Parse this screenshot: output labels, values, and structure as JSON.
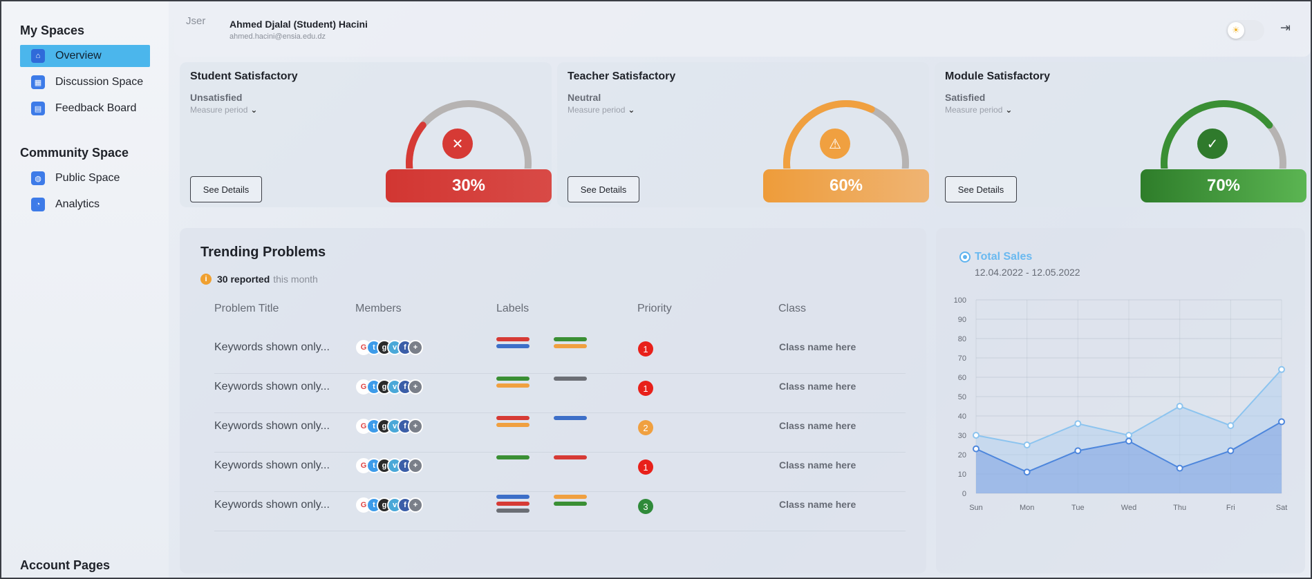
{
  "sidebar": {
    "my_spaces_title": "My Spaces",
    "my_spaces": [
      {
        "label": "Overview",
        "icon": "home-icon"
      },
      {
        "label": "Discussion Space",
        "icon": "grid-icon"
      },
      {
        "label": "Feedback Board",
        "icon": "feedback-icon"
      }
    ],
    "community_title": "Community Space",
    "community": [
      {
        "label": "Public Space",
        "icon": "globe-icon"
      },
      {
        "label": "Analytics",
        "icon": "pie-chart-icon"
      }
    ],
    "account_title": "Account Pages"
  },
  "header": {
    "user_label": "Jser",
    "user_name": "Ahmed Djalal (Student) Hacini",
    "user_email": "ahmed.hacini@ensia.edu.dz"
  },
  "cards": [
    {
      "title": "Student Satisfactory",
      "status": "Unsatisfied",
      "period": "Measure period",
      "button": "See Details",
      "percent_label": "30%",
      "value": 30,
      "color": "#d63a35",
      "icon": "x-icon"
    },
    {
      "title": "Teacher Satisfactory",
      "status": "Neutral",
      "period": "Measure period",
      "button": "See Details",
      "percent_label": "60%",
      "value": 60,
      "color": "#f0a040",
      "icon": "warning-icon"
    },
    {
      "title": "Module Satisfactory",
      "status": "Satisfied",
      "period": "Measure period",
      "button": "See Details",
      "percent_label": "70%",
      "value": 70,
      "color": "#3a8f34",
      "icon": "check-icon"
    }
  ],
  "problems": {
    "title": "Trending Problems",
    "reported_count": "30 reported",
    "reported_suffix": "this month",
    "columns": [
      "Problem Title",
      "Members",
      "Labels",
      "Priority",
      "Class"
    ],
    "rows": [
      {
        "title": "Keywords shown only...",
        "labels_a": [
          "#d63a35",
          "#3d6fc8"
        ],
        "labels_b": [
          "#3a8f34",
          "#f0a040"
        ],
        "priority": "1",
        "priority_color": "#e8201a",
        "class": "Class name here"
      },
      {
        "title": "Keywords shown only...",
        "labels_a": [
          "#3a8f34",
          "#f0a040"
        ],
        "labels_b": [
          "#6b6e75"
        ],
        "priority": "1",
        "priority_color": "#e8201a",
        "class": "Class name here"
      },
      {
        "title": "Keywords shown only...",
        "labels_a": [
          "#d63a35",
          "#f0a040"
        ],
        "labels_b": [
          "#3d6fc8"
        ],
        "priority": "2",
        "priority_color": "#f0a040",
        "class": "Class name here"
      },
      {
        "title": "Keywords shown only...",
        "labels_a": [
          "#3a8f34"
        ],
        "labels_b": [
          "#d63a35"
        ],
        "priority": "1",
        "priority_color": "#e8201a",
        "class": "Class name here"
      },
      {
        "title": "Keywords shown only...",
        "labels_a": [
          "#3d6fc8",
          "#d63a35",
          "#6b6e75"
        ],
        "labels_b": [
          "#f0a040",
          "#3a8f34"
        ],
        "priority": "3",
        "priority_color": "#2f8a3a",
        "class": "Class name here"
      }
    ],
    "member_icons": [
      "google-icon",
      "twitter-icon",
      "github-icon",
      "vimeo-icon",
      "facebook-icon",
      "plus-icon"
    ]
  },
  "chart_data": {
    "type": "area",
    "title": "Total Sales",
    "subtitle": "12.04.2022 - 12.05.2022",
    "categories": [
      "Sun",
      "Mon",
      "Tue",
      "Wed",
      "Thu",
      "Fri",
      "Sat"
    ],
    "series": [
      {
        "values": [
          30,
          25,
          36,
          30,
          45,
          35,
          64
        ],
        "color": "#8cc4ef"
      },
      {
        "values": [
          23,
          11,
          22,
          27,
          13,
          22,
          37
        ],
        "color": "#4d86dc"
      }
    ],
    "ylim": [
      0,
      100
    ],
    "yticks": [
      0,
      10,
      20,
      30,
      40,
      50,
      60,
      70,
      80,
      90,
      100
    ],
    "grid": true,
    "legend": "top-left"
  }
}
